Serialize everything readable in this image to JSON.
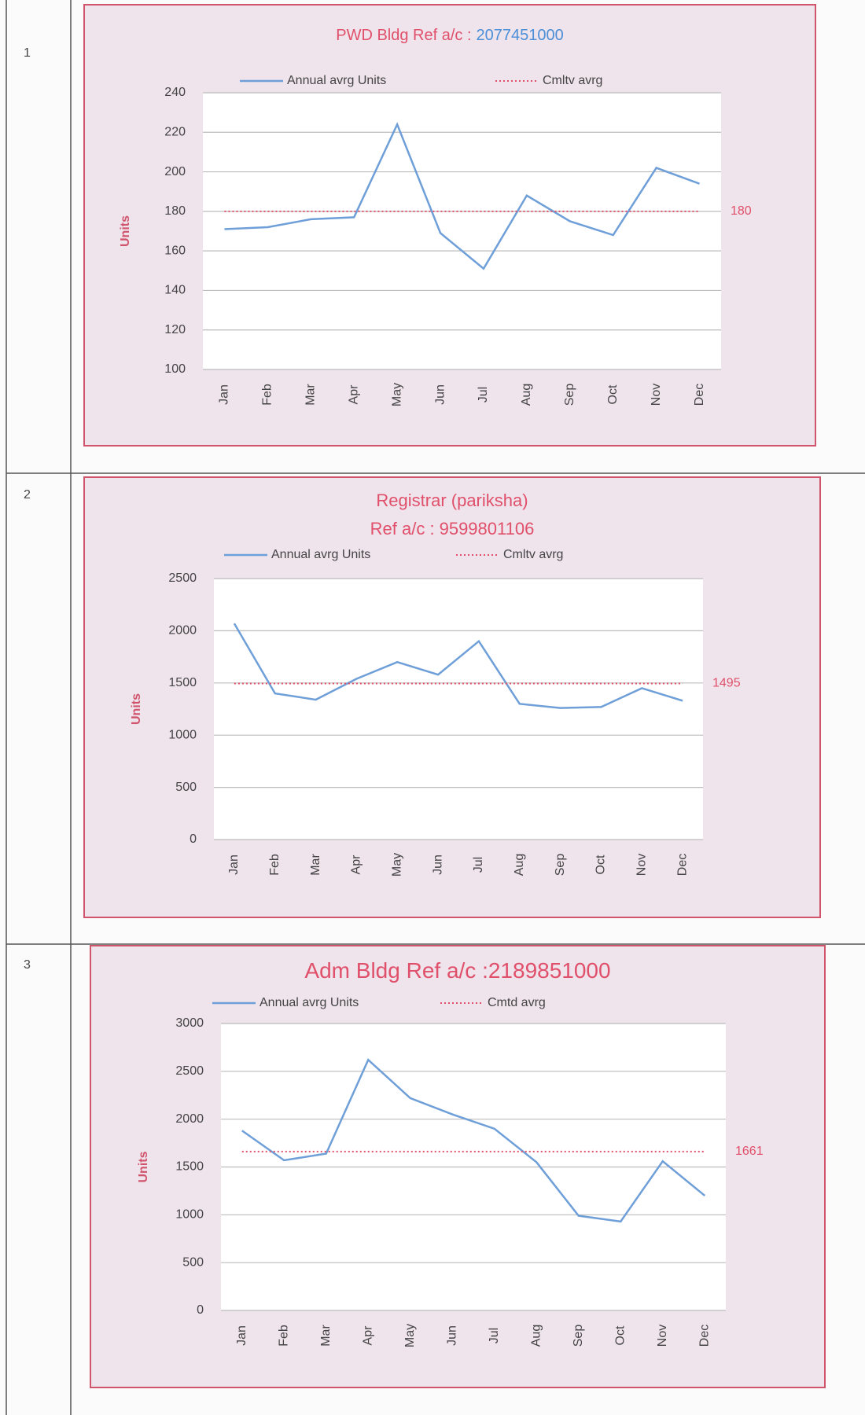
{
  "row_numbers": [
    1,
    2,
    3
  ],
  "chart_data": [
    {
      "type": "line",
      "title_lines": [
        [
          {
            "text": "PWD Bldg  Ref a/c :",
            "color": "#e0506a"
          },
          {
            "text": "2077451000",
            "color": "#4a8fd8"
          }
        ]
      ],
      "y_label": "Units",
      "categories": [
        "Jan",
        "Feb",
        "Mar",
        "Apr",
        "May",
        "Jun",
        "Jul",
        "Aug",
        "Sep",
        "Oct",
        "Nov",
        "Dec"
      ],
      "series": [
        {
          "name": "Annual avrg Units",
          "color": "#6f9fd8",
          "style": "solid",
          "values": [
            171,
            172,
            176,
            177,
            224,
            169,
            151,
            188,
            175,
            168,
            202,
            194
          ]
        },
        {
          "name": "Cmltv  avrg",
          "color": "#e0506a",
          "style": "dotted",
          "values": [
            180,
            180,
            180,
            180,
            180,
            180,
            180,
            180,
            180,
            180,
            180,
            180
          ]
        }
      ],
      "ylim": [
        100,
        240
      ],
      "yticks": [
        100,
        120,
        140,
        160,
        180,
        200,
        220,
        240
      ],
      "grid": true
    },
    {
      "type": "line",
      "title_lines": [
        [
          {
            "text": "Registrar (pariksha)",
            "color": "#e0506a"
          }
        ],
        [
          {
            "text": "Ref a/c :",
            "color": "#e0506a"
          },
          {
            "text": "9599801106",
            "color": "#e0506a"
          }
        ]
      ],
      "y_label": "Units",
      "categories": [
        "Jan",
        "Feb",
        "Mar",
        "Apr",
        "May",
        "Jun",
        "Jul",
        "Aug",
        "Sep",
        "Oct",
        "Nov",
        "Dec"
      ],
      "series": [
        {
          "name": "Annual avrg Units",
          "color": "#6f9fd8",
          "style": "solid",
          "values": [
            2070,
            1400,
            1340,
            1540,
            1700,
            1580,
            1900,
            1300,
            1260,
            1270,
            1450,
            1330
          ]
        },
        {
          "name": "Cmltv  avrg",
          "color": "#e0506a",
          "style": "dotted",
          "values": [
            1495,
            1495,
            1495,
            1495,
            1495,
            1495,
            1495,
            1495,
            1495,
            1495,
            1495,
            1495
          ]
        }
      ],
      "ylim": [
        0,
        2500
      ],
      "yticks": [
        0,
        500,
        1000,
        1500,
        2000,
        2500
      ],
      "grid": true
    },
    {
      "type": "line",
      "title_lines": [
        [
          {
            "text": "Adm Bldg Ref  a/c :2189851000",
            "color": "#e0506a"
          }
        ]
      ],
      "y_label": "Units",
      "categories": [
        "Jan",
        "Feb",
        "Mar",
        "Apr",
        "May",
        "Jun",
        "Jul",
        "Aug",
        "Sep",
        "Oct",
        "Nov",
        "Dec"
      ],
      "series": [
        {
          "name": "Annual avrg Units",
          "color": "#6f9fd8",
          "style": "solid",
          "values": [
            1880,
            1570,
            1640,
            2620,
            2220,
            2050,
            1900,
            1550,
            990,
            930,
            1560,
            1200
          ]
        },
        {
          "name": "Cmtd  avrg",
          "color": "#e0506a",
          "style": "dotted",
          "values": [
            1661,
            1661,
            1661,
            1661,
            1661,
            1661,
            1661,
            1661,
            1661,
            1661,
            1661,
            1661
          ]
        }
      ],
      "ylim": [
        0,
        3000
      ],
      "yticks": [
        0,
        500,
        1000,
        1500,
        2000,
        2500,
        3000
      ],
      "grid": true
    }
  ]
}
